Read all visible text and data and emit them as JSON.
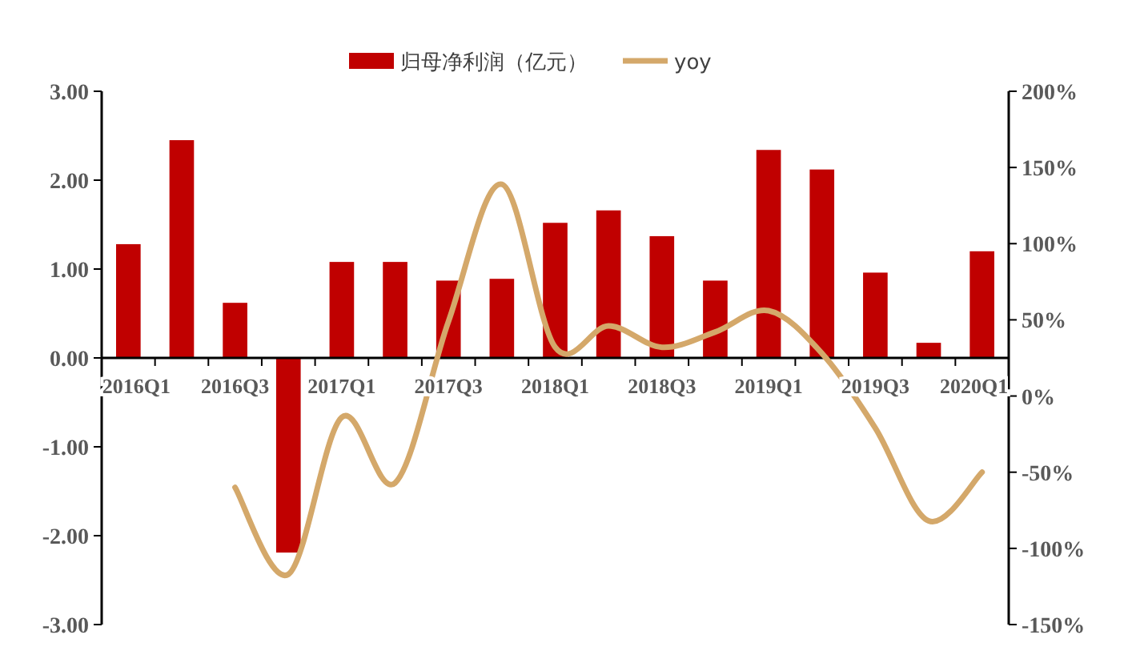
{
  "chart_data": {
    "type": "bar",
    "categories": [
      "2016Q1",
      null,
      "2016Q3",
      null,
      "2017Q1",
      null,
      "2017Q3",
      null,
      "2018Q1",
      null,
      "2018Q3",
      null,
      "2019Q1",
      null,
      "2019Q3",
      null,
      "2020Q1"
    ],
    "series": [
      {
        "name": "归母净利润（亿元）",
        "color": "#c00000",
        "values": [
          1.28,
          2.45,
          0.62,
          -2.19,
          1.08,
          1.08,
          0.87,
          0.89,
          1.52,
          1.66,
          1.37,
          0.87,
          2.34,
          2.12,
          0.96,
          0.17,
          1.2
        ]
      },
      {
        "name": "yoy",
        "type": "line",
        "axis": "y2",
        "color": "#d4a86a",
        "values": [
          null,
          null,
          -60,
          -117,
          -14,
          -57,
          49,
          139,
          32,
          46,
          32,
          42,
          56,
          28,
          -21,
          -82,
          -50
        ]
      }
    ],
    "ylim": [
      -3,
      3
    ],
    "yticks": [
      {
        "value": -3,
        "label": "-3.00"
      },
      {
        "value": -2,
        "label": "-2.00"
      },
      {
        "value": -1,
        "label": "-1.00"
      },
      {
        "value": 0,
        "label": "0.00"
      },
      {
        "value": 1,
        "label": "1.00"
      },
      {
        "value": 2,
        "label": "2.00"
      },
      {
        "value": 3,
        "label": "3.00"
      }
    ],
    "y2lim": [
      -150,
      200
    ],
    "y2ticks": [
      {
        "value": -150,
        "label": "-150%"
      },
      {
        "value": -100,
        "label": "-100%"
      },
      {
        "value": -50,
        "label": "-50%"
      },
      {
        "value": 0,
        "label": "0%"
      },
      {
        "value": 50,
        "label": "50%"
      },
      {
        "value": 100,
        "label": "100%"
      },
      {
        "value": 150,
        "label": "150%"
      },
      {
        "value": 200,
        "label": "200%"
      }
    ],
    "legend": "top",
    "grid": false
  }
}
